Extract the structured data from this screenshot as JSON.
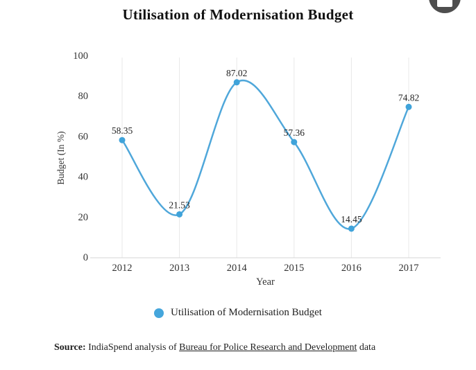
{
  "chart_data": {
    "type": "line",
    "title": "Utilisation of Modernisation Budget",
    "x": [
      2012,
      2013,
      2014,
      2015,
      2016,
      2017
    ],
    "series": [
      {
        "name": "Utilisation of Modernisation Budget",
        "values": [
          58.35,
          21.53,
          87.02,
          57.36,
          14.45,
          74.82
        ]
      }
    ],
    "data_labels": [
      "58.35",
      "21.53",
      "87.02",
      "57.36",
      "14.45",
      "74.82"
    ],
    "xlabel": "Year",
    "ylabel": "Budget (In %)",
    "ylim": [
      0,
      100
    ],
    "yticks": [
      0,
      20,
      40,
      60,
      80,
      100
    ],
    "grid": "vertical-only",
    "smooth": true,
    "legend_position": "bottom",
    "line_color": "#4FA7DA",
    "point_color": "#3FA3DA",
    "grid_color": "#e8e8e8",
    "axis_line_color": "#d6d6d6",
    "tick_label_color": "#333333",
    "data_label_color": "#222222"
  },
  "legend": {
    "marker_color": "#45A6DC",
    "label": "Utilisation of Modernisation Budget"
  },
  "source": {
    "prefix": "Source:",
    "text_before_link": " IndiaSpend analysis of ",
    "link": "Bureau for Police Research and Development",
    "text_after_link": " data"
  },
  "export": {
    "icon": "menu-icon"
  }
}
